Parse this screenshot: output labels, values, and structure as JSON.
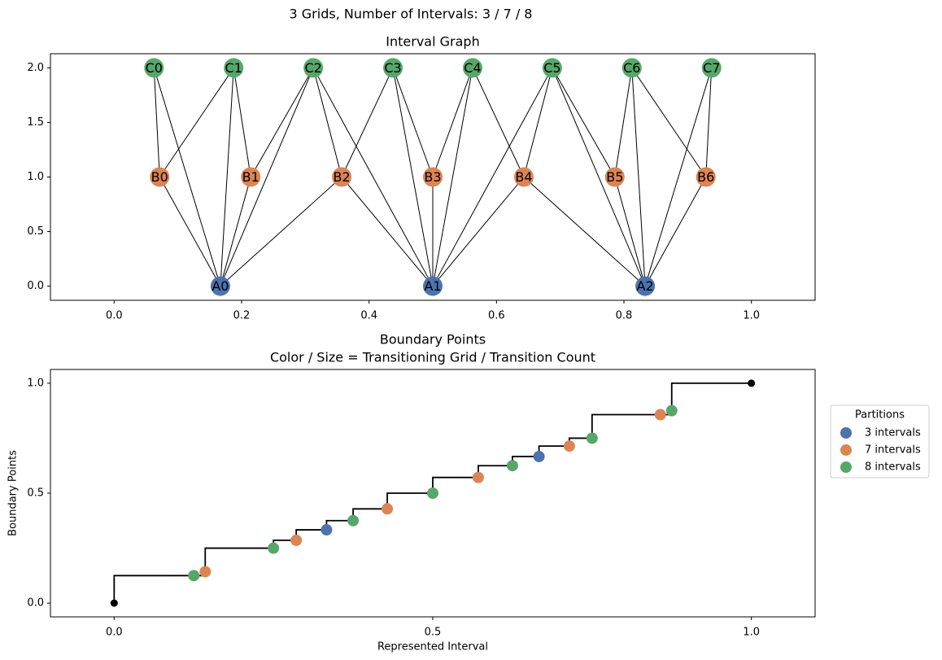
{
  "title": "3 Grids, Number of Intervals: 3 / 7 / 8",
  "chart_data": [
    {
      "type": "graph",
      "title": "Interval Graph",
      "xlim": [
        -0.1,
        1.1
      ],
      "ylim": [
        -0.13,
        2.13
      ],
      "xticks": [
        {
          "value": 0,
          "label": "0.0"
        },
        0.2,
        0.4,
        0.6,
        0.8,
        {
          "value": 1,
          "label": "1.0"
        }
      ],
      "yticks": [
        {
          "value": 0,
          "label": "0.0"
        },
        0.5,
        {
          "value": 1,
          "label": "1.0"
        },
        1.5,
        {
          "value": 2,
          "label": "2.0"
        }
      ],
      "nodes": [
        {
          "label": "A0",
          "x": 0.1667,
          "y": 0,
          "color": "#4c72b0"
        },
        {
          "label": "A1",
          "x": 0.5,
          "y": 0,
          "color": "#4c72b0"
        },
        {
          "label": "A2",
          "x": 0.8333,
          "y": 0,
          "color": "#4c72b0"
        },
        {
          "label": "B0",
          "x": 0.0714,
          "y": 1,
          "color": "#dd8452"
        },
        {
          "label": "B1",
          "x": 0.2143,
          "y": 1,
          "color": "#dd8452"
        },
        {
          "label": "B2",
          "x": 0.3571,
          "y": 1,
          "color": "#dd8452"
        },
        {
          "label": "B3",
          "x": 0.5,
          "y": 1,
          "color": "#dd8452"
        },
        {
          "label": "B4",
          "x": 0.6429,
          "y": 1,
          "color": "#dd8452"
        },
        {
          "label": "B5",
          "x": 0.7857,
          "y": 1,
          "color": "#dd8452"
        },
        {
          "label": "B6",
          "x": 0.9286,
          "y": 1,
          "color": "#dd8452"
        },
        {
          "label": "C0",
          "x": 0.0625,
          "y": 2,
          "color": "#55a868"
        },
        {
          "label": "C1",
          "x": 0.1875,
          "y": 2,
          "color": "#55a868"
        },
        {
          "label": "C2",
          "x": 0.3125,
          "y": 2,
          "color": "#55a868"
        },
        {
          "label": "C3",
          "x": 0.4375,
          "y": 2,
          "color": "#55a868"
        },
        {
          "label": "C4",
          "x": 0.5625,
          "y": 2,
          "color": "#55a868"
        },
        {
          "label": "C5",
          "x": 0.6875,
          "y": 2,
          "color": "#55a868"
        },
        {
          "label": "C6",
          "x": 0.8125,
          "y": 2,
          "color": "#55a868"
        },
        {
          "label": "C7",
          "x": 0.9375,
          "y": 2,
          "color": "#55a868"
        }
      ],
      "edges": [
        [
          0,
          3
        ],
        [
          0,
          4
        ],
        [
          0,
          5
        ],
        [
          0,
          10
        ],
        [
          0,
          11
        ],
        [
          0,
          12
        ],
        [
          1,
          5
        ],
        [
          1,
          6
        ],
        [
          1,
          7
        ],
        [
          1,
          12
        ],
        [
          1,
          13
        ],
        [
          1,
          14
        ],
        [
          1,
          15
        ],
        [
          2,
          7
        ],
        [
          2,
          8
        ],
        [
          2,
          9
        ],
        [
          2,
          15
        ],
        [
          2,
          16
        ],
        [
          2,
          17
        ],
        [
          3,
          10
        ],
        [
          3,
          11
        ],
        [
          4,
          11
        ],
        [
          4,
          12
        ],
        [
          5,
          12
        ],
        [
          5,
          13
        ],
        [
          6,
          13
        ],
        [
          6,
          14
        ],
        [
          7,
          14
        ],
        [
          7,
          15
        ],
        [
          8,
          15
        ],
        [
          8,
          16
        ],
        [
          9,
          16
        ],
        [
          9,
          17
        ]
      ]
    },
    {
      "type": "step",
      "title": [
        "Boundary Points",
        "Color / Size = Transitioning Grid / Transition Count"
      ],
      "xlabel": "Represented Interval",
      "ylabel": "Boundary Points",
      "xlim": [
        -0.1,
        1.1
      ],
      "ylim": [
        -0.0625,
        1.0625
      ],
      "xticks": [
        {
          "value": 0,
          "label": "0.0"
        },
        0.5,
        {
          "value": 1,
          "label": "1.0"
        }
      ],
      "yticks": [
        {
          "value": 0,
          "label": "0.0"
        },
        0.5,
        {
          "value": 1,
          "label": "1.0"
        }
      ],
      "step": {
        "where": "post",
        "color": "#000000",
        "x": [
          0,
          0,
          0.1429,
          0.25,
          0.2857,
          0.3333,
          0.375,
          0.4286,
          0.5,
          0.5714,
          0.625,
          0.6667,
          0.7143,
          0.75,
          0.875,
          1
        ],
        "y": [
          0,
          0.125,
          0.25,
          0.2857,
          0.3333,
          0.375,
          0.4286,
          0.5,
          0.5714,
          0.625,
          0.6667,
          0.7143,
          0.75,
          0.8571,
          1,
          1
        ]
      },
      "endpoints": {
        "x": [
          0,
          1
        ],
        "y": [
          0,
          1
        ],
        "color": "#000000"
      },
      "legend": {
        "title": "Partitions",
        "loc": "right"
      },
      "series": [
        {
          "name": "3 intervals",
          "color": "#4c72b0",
          "x": [
            0.3333,
            0.6667
          ],
          "y": [
            0.3333,
            0.6667
          ]
        },
        {
          "name": "7 intervals",
          "color": "#dd8452",
          "x": [
            0.1429,
            0.2857,
            0.4286,
            0.5714,
            0.7143,
            0.8571
          ],
          "y": [
            0.1429,
            0.2857,
            0.4286,
            0.5714,
            0.7143,
            0.8571
          ]
        },
        {
          "name": "8 intervals",
          "color": "#55a868",
          "x": [
            0.125,
            0.25,
            0.375,
            0.5,
            0.625,
            0.75,
            0.875
          ],
          "y": [
            0.125,
            0.25,
            0.375,
            0.5,
            0.625,
            0.75,
            0.875
          ]
        }
      ]
    }
  ]
}
